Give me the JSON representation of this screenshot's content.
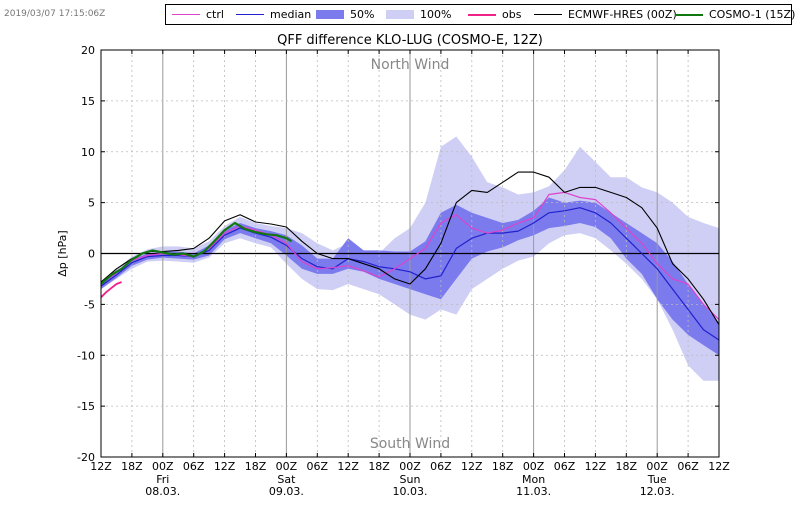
{
  "timestamp": "2019/03/07 17:15:06Z",
  "legend": [
    {
      "label": "ctrl",
      "kind": "line",
      "color": "#dd44cc"
    },
    {
      "label": "median",
      "kind": "line",
      "color": "#2222cc"
    },
    {
      "label": "50%",
      "kind": "patch",
      "color": "#7b7bee"
    },
    {
      "label": "100%",
      "kind": "patch",
      "color": "#cfcff6"
    },
    {
      "label": "obs",
      "kind": "line",
      "color": "#ee2288"
    },
    {
      "label": "ECMWF-HRES (00Z)",
      "kind": "line",
      "color": "#000000"
    },
    {
      "label": "COSMO-1 (15Z)",
      "kind": "line",
      "color": "#117711"
    }
  ],
  "chart_data": {
    "type": "line",
    "title": "QFF difference KLO-LUG (COSMO-E, 12Z)",
    "ylabel": "Δp [hPa]",
    "xlabel": "",
    "ylim": [
      -20,
      20
    ],
    "xlim": [
      0,
      120
    ],
    "x_unit": "hours since 07.03. 12Z",
    "yticks": [
      -20,
      -15,
      -10,
      -5,
      0,
      5,
      10,
      15,
      20
    ],
    "xticks": [
      {
        "x": 0,
        "label": "12Z"
      },
      {
        "x": 6,
        "label": "18Z"
      },
      {
        "x": 12,
        "label": "00Z"
      },
      {
        "x": 18,
        "label": "06Z"
      },
      {
        "x": 24,
        "label": "12Z"
      },
      {
        "x": 30,
        "label": "18Z"
      },
      {
        "x": 36,
        "label": "00Z"
      },
      {
        "x": 42,
        "label": "06Z"
      },
      {
        "x": 48,
        "label": "12Z"
      },
      {
        "x": 54,
        "label": "18Z"
      },
      {
        "x": 60,
        "label": "00Z"
      },
      {
        "x": 66,
        "label": "06Z"
      },
      {
        "x": 72,
        "label": "12Z"
      },
      {
        "x": 78,
        "label": "18Z"
      },
      {
        "x": 84,
        "label": "00Z"
      },
      {
        "x": 90,
        "label": "06Z"
      },
      {
        "x": 96,
        "label": "12Z"
      },
      {
        "x": 102,
        "label": "18Z"
      },
      {
        "x": 108,
        "label": "00Z"
      },
      {
        "x": 114,
        "label": "06Z"
      },
      {
        "x": 120,
        "label": "12Z"
      }
    ],
    "day_labels": [
      {
        "x": 12,
        "day": "Fri",
        "date": "08.03."
      },
      {
        "x": 36,
        "day": "Sat",
        "date": "09.03."
      },
      {
        "x": 60,
        "day": "Sun",
        "date": "10.03."
      },
      {
        "x": 84,
        "day": "Mon",
        "date": "11.03."
      },
      {
        "x": 108,
        "day": "Tue",
        "date": "12.03."
      }
    ],
    "annotations": {
      "top": "North Wind",
      "bottom": "South Wind"
    },
    "zero_line": true,
    "grid": true,
    "band_100": {
      "x": [
        0,
        3,
        6,
        9,
        12,
        15,
        18,
        21,
        24,
        27,
        30,
        33,
        36,
        39,
        42,
        45,
        48,
        51,
        54,
        57,
        60,
        63,
        66,
        69,
        72,
        75,
        78,
        81,
        84,
        87,
        90,
        93,
        96,
        99,
        102,
        105,
        108,
        111,
        114,
        117,
        120
      ],
      "upper": [
        -2.8,
        -1.5,
        -0.3,
        0.4,
        0.7,
        0.7,
        0.5,
        1.2,
        2.7,
        3.6,
        3.0,
        2.7,
        2.5,
        2.0,
        1.0,
        0.3,
        1.0,
        0.3,
        0.0,
        1.5,
        2.5,
        5.0,
        10.5,
        11.5,
        9.5,
        7.0,
        6.5,
        5.8,
        6.0,
        6.6,
        8.2,
        10.5,
        9.0,
        7.5,
        7.5,
        6.5,
        6.0,
        5.0,
        3.6,
        3.0,
        2.5
      ],
      "lower": [
        -3.5,
        -2.5,
        -1.5,
        -0.8,
        -0.7,
        -0.8,
        -0.9,
        -0.4,
        1.0,
        1.5,
        1.0,
        0.6,
        -1.0,
        -2.5,
        -3.5,
        -3.6,
        -3.0,
        -3.5,
        -4.0,
        -5.0,
        -6.0,
        -6.5,
        -5.5,
        -6.0,
        -3.5,
        -2.5,
        -1.5,
        -0.7,
        -0.3,
        1.0,
        1.8,
        2.0,
        1.5,
        0.3,
        -1.0,
        -2.5,
        -4.5,
        -7.5,
        -11.0,
        -12.5,
        -12.5
      ]
    },
    "band_50": {
      "x": [
        0,
        3,
        6,
        9,
        12,
        15,
        18,
        21,
        24,
        27,
        30,
        33,
        36,
        39,
        42,
        45,
        48,
        51,
        54,
        57,
        60,
        63,
        66,
        69,
        72,
        75,
        78,
        81,
        84,
        87,
        90,
        93,
        96,
        99,
        102,
        105,
        108,
        111,
        114,
        117,
        120
      ],
      "upper": [
        -3.0,
        -1.8,
        -0.6,
        0.0,
        0.2,
        0.2,
        0.0,
        0.8,
        2.3,
        3.0,
        2.5,
        2.2,
        1.8,
        0.8,
        -0.5,
        -0.5,
        1.5,
        0.3,
        0.3,
        0.2,
        0.2,
        1.2,
        4.0,
        4.8,
        4.0,
        3.5,
        3.0,
        3.3,
        4.2,
        5.5,
        5.0,
        5.2,
        5.0,
        4.0,
        3.0,
        2.0,
        1.0,
        -0.8,
        -3.0,
        -5.0,
        -6.8
      ],
      "lower": [
        -3.5,
        -2.4,
        -1.2,
        -0.6,
        -0.4,
        -0.5,
        -0.6,
        -0.2,
        1.4,
        2.0,
        1.5,
        1.0,
        -0.2,
        -1.5,
        -2.0,
        -2.0,
        -1.5,
        -1.8,
        -2.5,
        -3.0,
        -3.5,
        -4.0,
        -4.5,
        -2.5,
        -0.5,
        0.2,
        0.6,
        1.3,
        1.8,
        2.5,
        2.7,
        3.0,
        2.6,
        1.5,
        -0.5,
        -2.0,
        -4.5,
        -6.5,
        -8.0,
        -9.0,
        -10.0
      ]
    },
    "series": [
      {
        "name": "median",
        "color": "#2222cc",
        "x": [
          0,
          3,
          6,
          9,
          12,
          15,
          18,
          21,
          24,
          27,
          30,
          33,
          36,
          39,
          42,
          45,
          48,
          51,
          54,
          57,
          60,
          63,
          66,
          69,
          72,
          75,
          78,
          81,
          84,
          87,
          90,
          93,
          96,
          99,
          102,
          105,
          108,
          111,
          114,
          117,
          120
        ],
        "y": [
          -3.2,
          -2.1,
          -0.9,
          -0.3,
          -0.2,
          -0.2,
          -0.3,
          0.3,
          1.8,
          2.5,
          2.0,
          1.6,
          0.8,
          -0.5,
          -1.3,
          -1.5,
          -0.5,
          -0.8,
          -1.3,
          -1.5,
          -1.8,
          -2.5,
          -2.2,
          0.5,
          1.5,
          2.0,
          2.0,
          2.2,
          3.0,
          4.0,
          4.2,
          4.5,
          4.0,
          3.0,
          1.5,
          0.0,
          -1.5,
          -3.5,
          -5.5,
          -7.5,
          -8.5
        ]
      },
      {
        "name": "ctrl",
        "color": "#dd44cc",
        "x": [
          0,
          3,
          6,
          9,
          12,
          15,
          18,
          21,
          24,
          27,
          30,
          33,
          36,
          39,
          42,
          45,
          48,
          51,
          54,
          57,
          60,
          63,
          66,
          69,
          72,
          75,
          78,
          81,
          84,
          87,
          90,
          93,
          96,
          99,
          102,
          105,
          108,
          111,
          114,
          117,
          120
        ],
        "y": [
          -3.0,
          -1.9,
          -0.7,
          -0.2,
          0.0,
          -0.1,
          -0.3,
          0.5,
          2.0,
          2.7,
          2.3,
          1.8,
          1.0,
          -0.8,
          -1.5,
          -1.4,
          -1.2,
          -1.7,
          -2.3,
          -1.5,
          -0.5,
          0.5,
          3.0,
          3.8,
          2.5,
          2.0,
          2.3,
          3.0,
          3.5,
          5.8,
          6.0,
          5.5,
          5.3,
          4.0,
          2.5,
          1.0,
          -1.0,
          -2.5,
          -3.0,
          -5.0,
          -6.5
        ]
      },
      {
        "name": "ECMWF-HRES (00Z)",
        "color": "#000000",
        "x": [
          0,
          3,
          6,
          9,
          12,
          15,
          18,
          21,
          24,
          27,
          30,
          33,
          36,
          39,
          42,
          45,
          48,
          51,
          54,
          57,
          60,
          63,
          66,
          69,
          72,
          75,
          78,
          81,
          84,
          87,
          90,
          93,
          96,
          99,
          102,
          105,
          108,
          111,
          114,
          117,
          120
        ],
        "y": [
          -2.8,
          -1.5,
          -0.5,
          0.2,
          0.2,
          0.3,
          0.5,
          1.5,
          3.2,
          3.8,
          3.1,
          2.9,
          2.6,
          1.2,
          0.0,
          -0.5,
          -0.5,
          -1.0,
          -1.5,
          -2.5,
          -3.0,
          -1.5,
          1.0,
          5.0,
          6.2,
          6.0,
          7.0,
          8.0,
          8.0,
          7.5,
          6.0,
          6.5,
          6.5,
          6.0,
          5.5,
          4.5,
          2.5,
          -1.0,
          -2.5,
          -4.5,
          -7.0
        ]
      },
      {
        "name": "COSMO-1 (15Z)",
        "color": "#117711",
        "x": [
          0,
          2,
          4,
          6,
          8,
          10,
          12,
          14,
          16,
          18,
          20,
          22,
          24,
          26,
          28,
          30,
          32,
          34,
          36,
          37
        ],
        "y": [
          -3.0,
          -2.1,
          -1.5,
          -0.6,
          0.0,
          0.3,
          0.1,
          -0.1,
          0.0,
          -0.3,
          0.2,
          1.2,
          2.3,
          3.0,
          2.4,
          2.1,
          1.9,
          1.8,
          1.5,
          1.2
        ]
      },
      {
        "name": "obs",
        "color": "#ee2288",
        "x": [
          0,
          1,
          2,
          3,
          4
        ],
        "y": [
          -4.3,
          -3.8,
          -3.4,
          -3.0,
          -2.8
        ]
      }
    ]
  }
}
